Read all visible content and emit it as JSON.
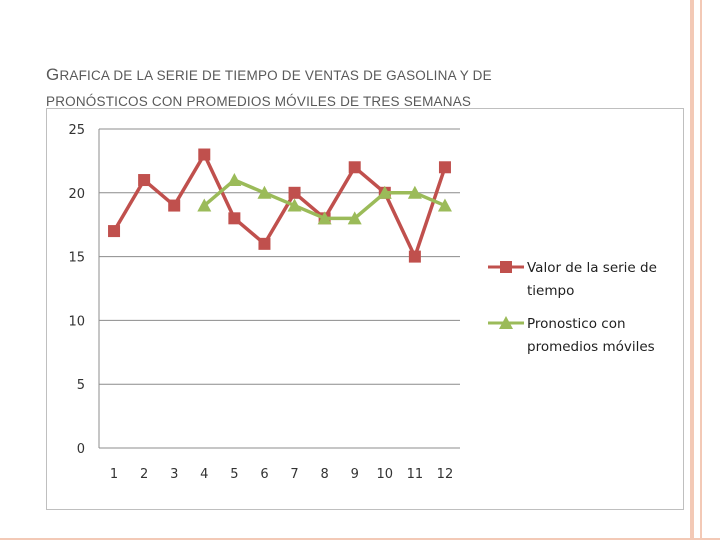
{
  "title": {
    "line1": "GRAFICA DE LA SERIE DE TIEMPO DE VENTAS DE GASOLINA Y DE",
    "line2": "PRONÓSTICOS CON PROMEDIOS MÓVILES DE TRES SEMANAS"
  },
  "chart_data": {
    "type": "line",
    "title": "",
    "xlabel": "",
    "ylabel": "",
    "categories": [
      "1",
      "2",
      "3",
      "4",
      "5",
      "6",
      "7",
      "8",
      "9",
      "10",
      "11",
      "12"
    ],
    "x": [
      1,
      2,
      3,
      4,
      5,
      6,
      7,
      8,
      9,
      10,
      11,
      12
    ],
    "ylim": [
      0,
      25
    ],
    "yticks": [
      0,
      5,
      10,
      15,
      20,
      25
    ],
    "grid": "horizontal",
    "legend_position": "right",
    "series": [
      {
        "name": "Valor de la serie de tiempo",
        "color": "#c0504d",
        "marker": "square",
        "values": [
          17,
          21,
          19,
          23,
          18,
          16,
          20,
          18,
          22,
          20,
          15,
          22
        ]
      },
      {
        "name": "Pronostico con promedios móviles",
        "color": "#9bbb59",
        "marker": "triangle",
        "values": [
          null,
          null,
          null,
          19,
          21,
          20,
          19,
          18,
          18,
          20,
          20,
          19
        ]
      }
    ]
  },
  "legend": {
    "item1": "Valor de la serie de tiempo",
    "item2": "Pronostico con promedios móviles"
  },
  "colors": {
    "accent_border": "#f3c9b6",
    "series1": "#c0504d",
    "series2": "#9bbb59",
    "gridline": "#8c8c8c"
  }
}
